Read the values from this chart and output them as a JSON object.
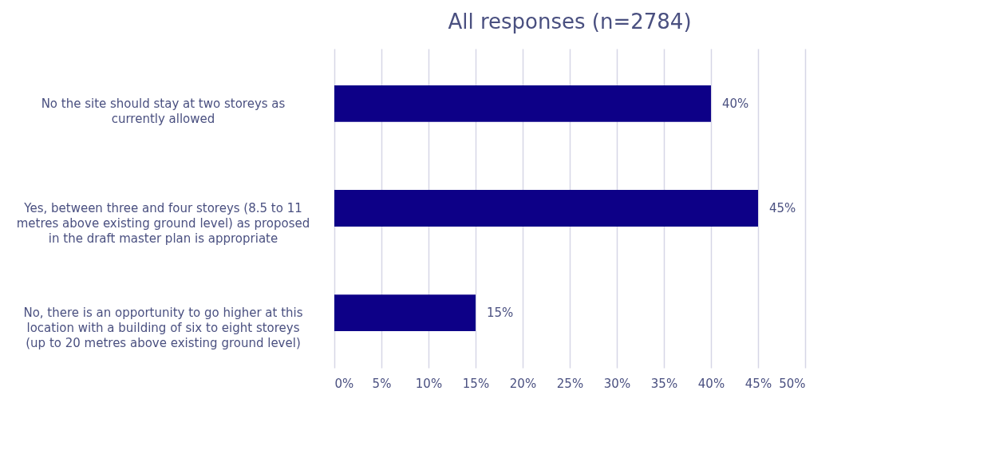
{
  "chart_data": {
    "type": "bar",
    "orientation": "horizontal",
    "title": "All responses (n=2784)",
    "categories": [
      "No  the site should stay at two storeys as\ncurrently allowed",
      "Yes, between three and four storeys (8.5 to 11\nmetres above existing ground level) as proposed\nin the draft master plan is appropriate",
      "No, there is an opportunity to go higher at this\nlocation with a building of six to eight storeys\n(up to 20 metres above existing ground level)"
    ],
    "values": [
      40,
      45,
      15
    ],
    "value_labels": [
      "40%",
      "45%",
      "15%"
    ],
    "color": "#0d0087",
    "xlim": [
      0,
      50
    ],
    "xticks": [
      {
        "value": 0,
        "label": "0%"
      },
      {
        "value": 5,
        "label": "5%"
      },
      {
        "value": 10,
        "label": "10%"
      },
      {
        "value": 15,
        "label": "15%"
      },
      {
        "value": 20,
        "label": "20%"
      },
      {
        "value": 25,
        "label": "25%"
      },
      {
        "value": 30,
        "label": "30%"
      },
      {
        "value": 35,
        "label": "35%"
      },
      {
        "value": 40,
        "label": "40%"
      },
      {
        "value": 45,
        "label": "45%"
      },
      {
        "value": 50,
        "label": "50%"
      }
    ],
    "grid": "x"
  }
}
